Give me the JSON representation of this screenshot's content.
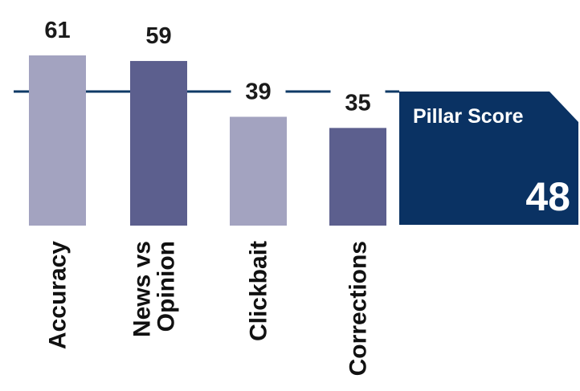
{
  "chart_data": {
    "type": "bar",
    "categories": [
      "Accuracy",
      "News vs\nOpinion",
      "Clickbait",
      "Corrections"
    ],
    "values": [
      61,
      59,
      39,
      35
    ],
    "ylim": [
      0,
      61
    ],
    "reference_line": 48,
    "grid": false,
    "colors": [
      "#a3a3c0",
      "#5c5f8e",
      "#a3a3c0",
      "#5c5f8e"
    ],
    "reference_line_color": "#0e3a66"
  },
  "pillar": {
    "title": "Pillar Score",
    "value": "48",
    "color": "#0a3263"
  }
}
